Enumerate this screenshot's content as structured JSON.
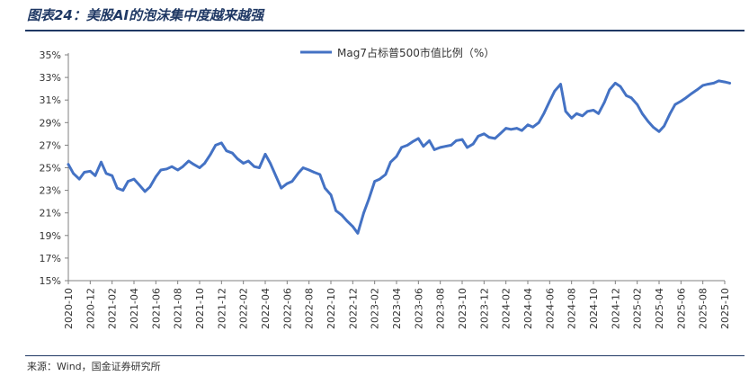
{
  "figure": {
    "title": "图表24：美股AI的泡沫集中度越来越强",
    "source": "来源：Wind，国金证券研究所"
  },
  "colors": {
    "line": "#4472c4",
    "axis": "#808080",
    "title": "#1f3864",
    "text": "#333333"
  },
  "chart_data": {
    "type": "line",
    "title": "",
    "xlabel": "",
    "ylabel": "",
    "legend": "top-center",
    "grid": false,
    "ylim": [
      15,
      35
    ],
    "y_ticks": [
      "15%",
      "17%",
      "19%",
      "21%",
      "23%",
      "25%",
      "27%",
      "29%",
      "31%",
      "33%",
      "35%"
    ],
    "x_ticks": [
      "2020-10",
      "2020-12",
      "2021-02",
      "2021-04",
      "2021-06",
      "2021-08",
      "2021-10",
      "2021-12",
      "2022-02",
      "2022-04",
      "2022-06",
      "2022-08",
      "2022-10",
      "2022-12",
      "2023-02",
      "2023-04",
      "2023-06",
      "2023-08",
      "2023-10",
      "2023-12",
      "2024-02",
      "2024-04",
      "2024-06",
      "2024-08",
      "2024-10",
      "2024-12",
      "2025-02",
      "2025-04",
      "2025-06",
      "2025-08",
      "2025-10"
    ],
    "series": [
      {
        "name": "Mag7占标普500市值比例（%）",
        "x": [
          "2020-10-01",
          "2020-10-15",
          "2020-11-01",
          "2020-11-15",
          "2020-12-01",
          "2020-12-15",
          "2021-01-01",
          "2021-01-15",
          "2021-02-01",
          "2021-02-15",
          "2021-03-01",
          "2021-03-15",
          "2021-04-01",
          "2021-04-15",
          "2021-05-01",
          "2021-05-15",
          "2021-06-01",
          "2021-06-15",
          "2021-07-01",
          "2021-07-15",
          "2021-08-01",
          "2021-08-15",
          "2021-09-01",
          "2021-09-15",
          "2021-10-01",
          "2021-10-15",
          "2021-11-01",
          "2021-11-15",
          "2021-12-01",
          "2021-12-15",
          "2022-01-01",
          "2022-01-15",
          "2022-02-01",
          "2022-02-15",
          "2022-03-01",
          "2022-03-15",
          "2022-04-01",
          "2022-04-15",
          "2022-05-01",
          "2022-05-15",
          "2022-06-01",
          "2022-06-15",
          "2022-07-01",
          "2022-07-15",
          "2022-08-01",
          "2022-08-15",
          "2022-09-01",
          "2022-09-15",
          "2022-10-01",
          "2022-10-15",
          "2022-11-01",
          "2022-11-15",
          "2022-12-01",
          "2022-12-15",
          "2023-01-01",
          "2023-01-15",
          "2023-02-01",
          "2023-02-15",
          "2023-03-01",
          "2023-03-15",
          "2023-04-01",
          "2023-04-15",
          "2023-05-01",
          "2023-05-15",
          "2023-06-01",
          "2023-06-15",
          "2023-07-01",
          "2023-07-15",
          "2023-08-01",
          "2023-08-15",
          "2023-09-01",
          "2023-09-15",
          "2023-10-01",
          "2023-10-15",
          "2023-11-01",
          "2023-11-15",
          "2023-12-01",
          "2023-12-15",
          "2024-01-01",
          "2024-01-15",
          "2024-02-01",
          "2024-02-15",
          "2024-03-01",
          "2024-03-15",
          "2024-04-01",
          "2024-04-15",
          "2024-05-01",
          "2024-05-15",
          "2024-06-01",
          "2024-06-15",
          "2024-07-01",
          "2024-07-15",
          "2024-08-01",
          "2024-08-15",
          "2024-09-01",
          "2024-09-15",
          "2024-10-01",
          "2024-10-15",
          "2024-11-01",
          "2024-11-15",
          "2024-12-01",
          "2024-12-15",
          "2025-01-01",
          "2025-01-15",
          "2025-02-01",
          "2025-02-15",
          "2025-03-01",
          "2025-03-15",
          "2025-04-01",
          "2025-04-15",
          "2025-05-01",
          "2025-05-15",
          "2025-06-01",
          "2025-06-15",
          "2025-07-01",
          "2025-07-15",
          "2025-08-01",
          "2025-08-15",
          "2025-09-01",
          "2025-09-15",
          "2025-10-01",
          "2025-10-15"
        ],
        "values": [
          25.3,
          24.5,
          24.0,
          24.6,
          24.7,
          24.3,
          25.5,
          24.5,
          24.3,
          23.2,
          23.0,
          23.8,
          24.0,
          23.5,
          22.9,
          23.3,
          24.2,
          24.8,
          24.9,
          25.1,
          24.8,
          25.1,
          25.6,
          25.3,
          25.0,
          25.4,
          26.2,
          27.0,
          27.2,
          26.5,
          26.3,
          25.8,
          25.4,
          25.6,
          25.1,
          25.0,
          26.2,
          25.4,
          24.2,
          23.2,
          23.6,
          23.8,
          24.5,
          25.0,
          24.8,
          24.6,
          24.4,
          23.2,
          22.6,
          21.2,
          20.8,
          20.3,
          19.8,
          19.2,
          21.0,
          22.2,
          23.8,
          24.0,
          24.4,
          25.5,
          26.0,
          26.8,
          27.0,
          27.3,
          27.6,
          26.9,
          27.4,
          26.6,
          26.8,
          26.9,
          27.0,
          27.4,
          27.5,
          26.8,
          27.1,
          27.8,
          28.0,
          27.7,
          27.6,
          28.0,
          28.5,
          28.4,
          28.5,
          28.3,
          28.8,
          28.6,
          29.0,
          29.8,
          30.9,
          31.8,
          32.4,
          30.0,
          29.4,
          29.8,
          29.6,
          30.0,
          30.1,
          29.8,
          30.8,
          31.9,
          32.5,
          32.2,
          31.4,
          31.2,
          30.6,
          29.8,
          29.1,
          28.6,
          28.2,
          28.7,
          29.8,
          30.6,
          30.9,
          31.2,
          31.6,
          31.9,
          32.3,
          32.4,
          32.5,
          32.7,
          32.6,
          32.5
        ]
      }
    ]
  }
}
